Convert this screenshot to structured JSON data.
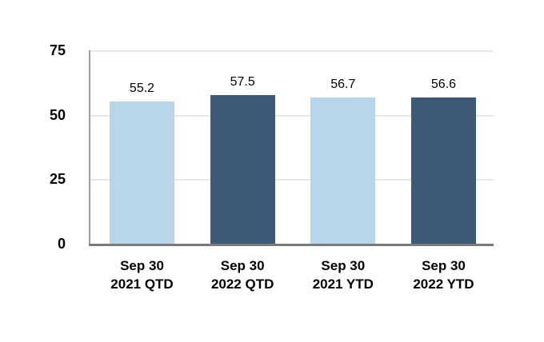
{
  "chart_data": {
    "type": "bar",
    "categories": [
      "Sep 30 2021 QTD",
      "Sep 30 2022 QTD",
      "Sep 30 2021 YTD",
      "Sep 30 2022 YTD"
    ],
    "categories_line1": [
      "Sep 30",
      "Sep 30",
      "Sep 30",
      "Sep 30"
    ],
    "categories_line2": [
      "2021 QTD",
      "2022 QTD",
      "2021 YTD",
      "2022 YTD"
    ],
    "values": [
      55.2,
      57.5,
      56.7,
      56.6
    ],
    "value_labels": [
      "55.2",
      "57.5",
      "56.7",
      "56.6"
    ],
    "bar_colors": [
      "#b9d5ea",
      "#3c5a75",
      "#b9d5ea",
      "#3c5a75"
    ],
    "title": "",
    "xlabel": "",
    "ylabel": "",
    "ylim": [
      0,
      75
    ],
    "yticks": [
      0,
      25,
      50,
      75
    ],
    "ytick_labels": [
      "0",
      "25",
      "50",
      "75"
    ],
    "grid": true,
    "legend": false,
    "colors": {
      "light_blue": "#b9d5ea",
      "dark_blue": "#3c5a75",
      "gridline": "#e7e7e7",
      "x_axis_line": "#7a7a7a",
      "y_axis_line": "#9e9e9e",
      "text": "#000000",
      "background": "#ffffff"
    }
  }
}
